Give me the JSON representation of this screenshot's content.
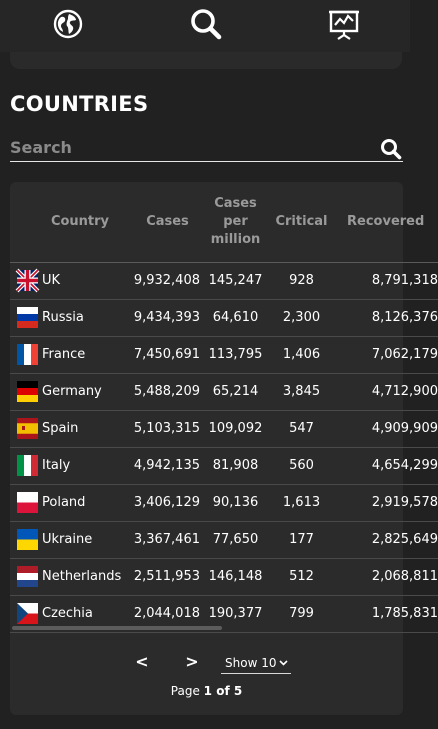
{
  "nav": {
    "items": [
      {
        "icon": "globe-icon"
      },
      {
        "icon": "search-icon"
      },
      {
        "icon": "stats-board-icon"
      }
    ]
  },
  "page": {
    "title": "COUNTRIES"
  },
  "search": {
    "placeholder": "Search",
    "value": "",
    "icon": "search-icon"
  },
  "table": {
    "headers": {
      "country": "Country",
      "cases": "Cases",
      "cases_per_million": "Cases per million",
      "critical": "Critical",
      "recovered": "Recovered"
    },
    "rows": [
      {
        "country": "UK",
        "flag": "uk",
        "cases": "9,932,408",
        "cases_per_million": "145,247",
        "critical": "928",
        "recovered": "8,791,318"
      },
      {
        "country": "Russia",
        "flag": "russia",
        "cases": "9,434,393",
        "cases_per_million": "64,610",
        "critical": "2,300",
        "recovered": "8,126,376"
      },
      {
        "country": "France",
        "flag": "france",
        "cases": "7,450,691",
        "cases_per_million": "113,795",
        "critical": "1,406",
        "recovered": "7,062,179"
      },
      {
        "country": "Germany",
        "flag": "germany",
        "cases": "5,488,209",
        "cases_per_million": "65,214",
        "critical": "3,845",
        "recovered": "4,712,900"
      },
      {
        "country": "Spain",
        "flag": "spain",
        "cases": "5,103,315",
        "cases_per_million": "109,092",
        "critical": "547",
        "recovered": "4,909,909"
      },
      {
        "country": "Italy",
        "flag": "italy",
        "cases": "4,942,135",
        "cases_per_million": "81,908",
        "critical": "560",
        "recovered": "4,654,299"
      },
      {
        "country": "Poland",
        "flag": "poland",
        "cases": "3,406,129",
        "cases_per_million": "90,136",
        "critical": "1,613",
        "recovered": "2,919,578"
      },
      {
        "country": "Ukraine",
        "flag": "ukraine",
        "cases": "3,367,461",
        "cases_per_million": "77,650",
        "critical": "177",
        "recovered": "2,825,649"
      },
      {
        "country": "Netherlands",
        "flag": "netherlands",
        "cases": "2,511,953",
        "cases_per_million": "146,148",
        "critical": "512",
        "recovered": "2,068,811"
      },
      {
        "country": "Czechia",
        "flag": "czechia",
        "cases": "2,044,018",
        "cases_per_million": "190,377",
        "critical": "799",
        "recovered": "1,785,831"
      }
    ]
  },
  "pagination": {
    "prev_label": "<",
    "next_label": ">",
    "page_size_label": "Show 10",
    "page_prefix": "Page ",
    "current_page": "1",
    "of_label": " of ",
    "total_pages": "5"
  },
  "colors": {
    "background": "#212121",
    "card": "#2b2b2b",
    "header_text": "#9a9a9a",
    "text": "#ffffff"
  }
}
